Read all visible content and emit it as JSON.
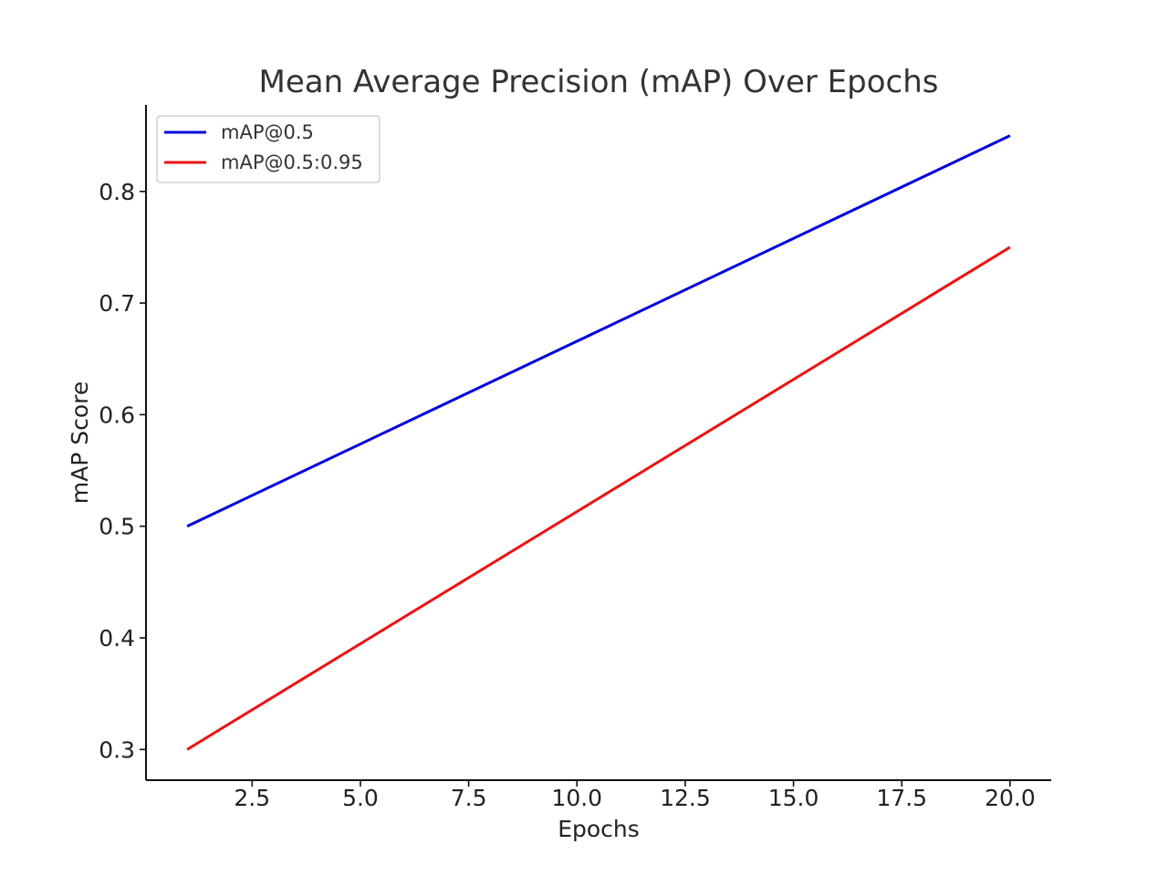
{
  "chart_data": {
    "type": "line",
    "title": "Mean Average Precision (mAP) Over Epochs",
    "xlabel": "Epochs",
    "ylabel": "mAP Score",
    "xlim": [
      0.05,
      20.95
    ],
    "ylim": [
      0.2725,
      0.8775
    ],
    "x_ticks": [
      2.5,
      5.0,
      7.5,
      10.0,
      12.5,
      15.0,
      17.5,
      20.0
    ],
    "x_tick_labels": [
      "2.5",
      "5.0",
      "7.5",
      "10.0",
      "12.5",
      "15.0",
      "17.5",
      "20.0"
    ],
    "y_ticks": [
      0.3,
      0.4,
      0.5,
      0.6,
      0.7,
      0.8
    ],
    "y_tick_labels": [
      "0.3",
      "0.4",
      "0.5",
      "0.6",
      "0.7",
      "0.8"
    ],
    "grid": false,
    "legend_position": "top-left",
    "series": [
      {
        "name": "mAP@0.5",
        "color": "#0000dd",
        "x": [
          1,
          20
        ],
        "y": [
          0.5,
          0.85
        ]
      },
      {
        "name": "mAP@0.5:0.95",
        "color": "#ee1111",
        "x": [
          1,
          20
        ],
        "y": [
          0.3,
          0.75
        ]
      }
    ]
  }
}
